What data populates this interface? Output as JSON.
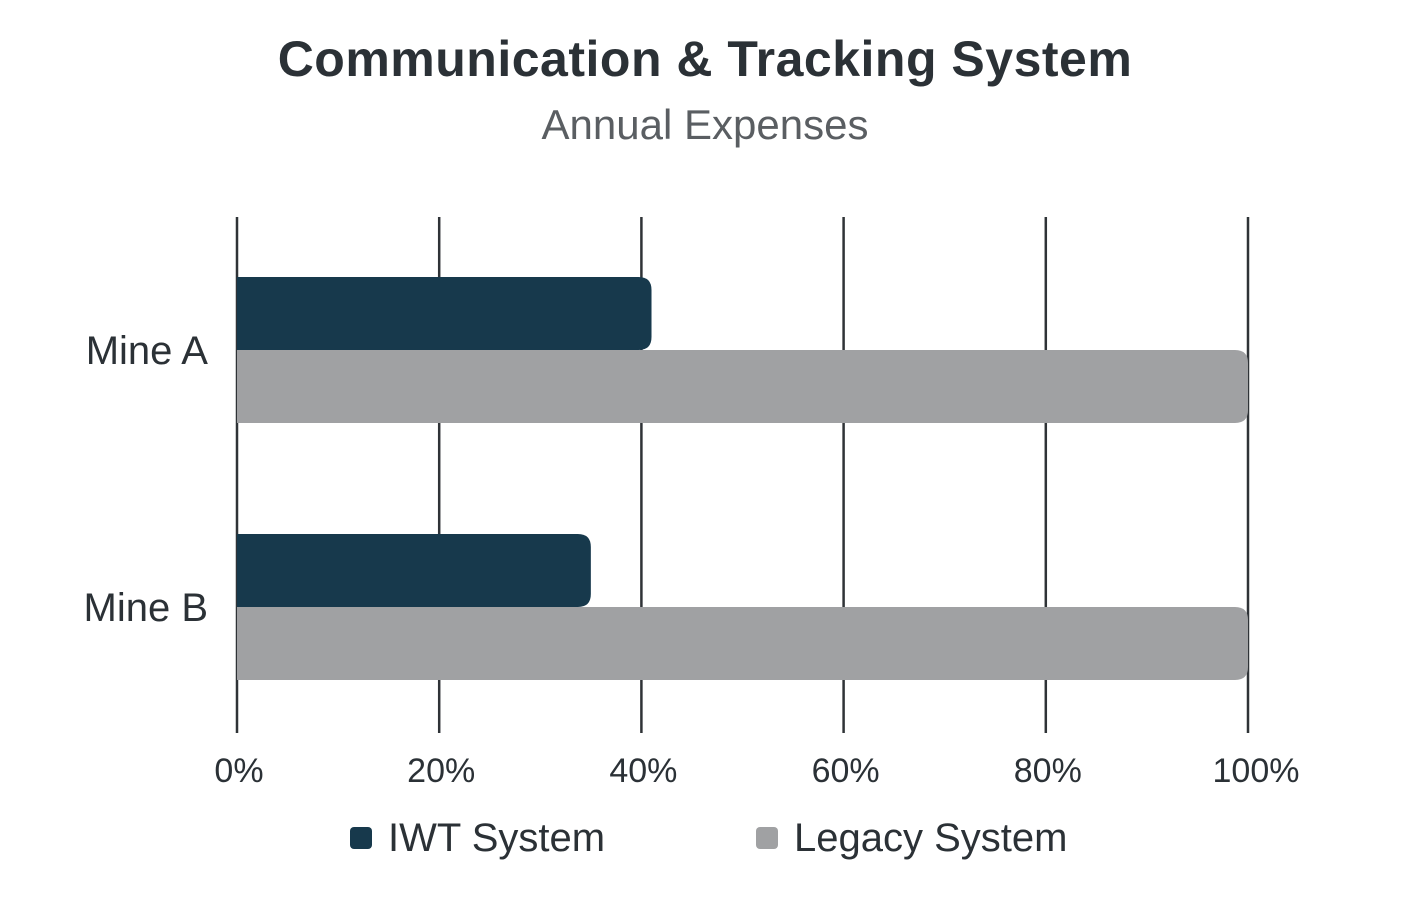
{
  "chart_data": {
    "type": "bar",
    "orientation": "horizontal",
    "title": "Communication & Tracking System",
    "subtitle": "Annual Expenses",
    "categories": [
      "Mine A",
      "Mine B"
    ],
    "series": [
      {
        "name": "IWT System",
        "color": "#17394c",
        "values": [
          41,
          35
        ]
      },
      {
        "name": "Legacy System",
        "color": "#a0a1a3",
        "values": [
          100,
          100
        ]
      }
    ],
    "xlim": [
      0,
      100
    ],
    "xticks": [
      0,
      20,
      40,
      60,
      80,
      100
    ],
    "xtick_labels": [
      "0%",
      "20%",
      "40%",
      "60%",
      "80%",
      "100%"
    ],
    "grid": true,
    "legend_position": "bottom",
    "xlabel": "",
    "ylabel": ""
  }
}
